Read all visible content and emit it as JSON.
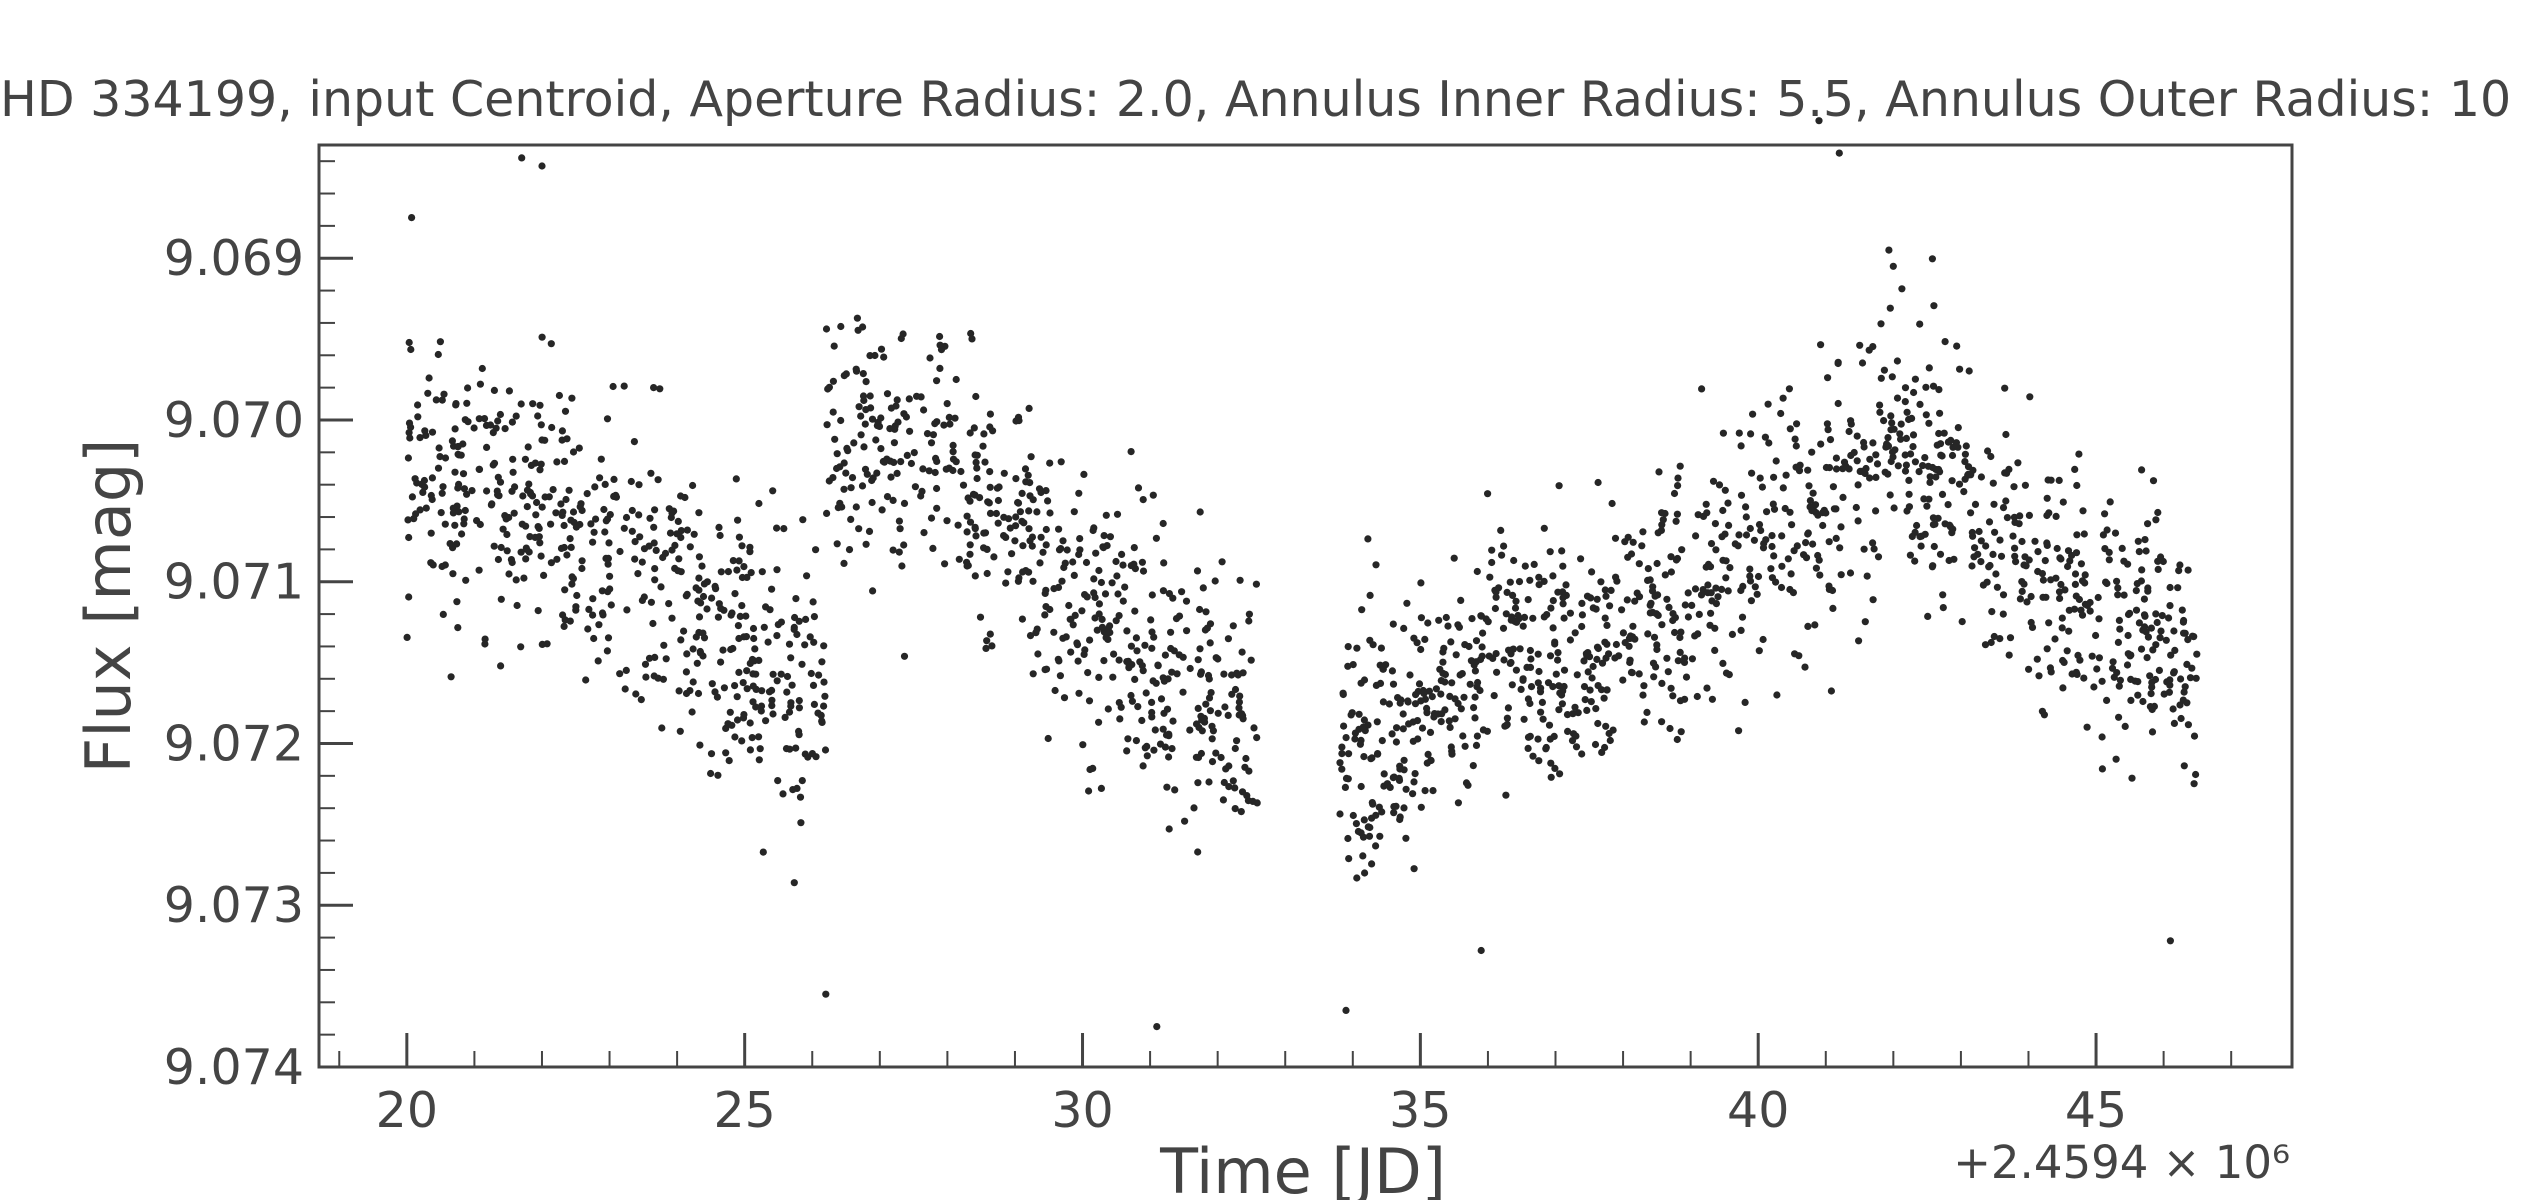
{
  "chart_data": {
    "type": "scatter",
    "title": "HD 334199, input Centroid, Aperture Radius: 2.0, Annulus Inner Radius: 5.5, Annulus Outer Radius: 10",
    "xlabel": "Time [JD]",
    "ylabel": "Flux [mag]",
    "x_offset_label": "+2.4594 × 10⁶",
    "x_offset": 2459400,
    "xlim": [
      18.7,
      47.9
    ],
    "ylim": [
      9.074,
      9.0683
    ],
    "y_inverted": true,
    "x_ticks": [
      {
        "value": 20,
        "label": "20"
      },
      {
        "value": 25,
        "label": "25"
      },
      {
        "value": 30,
        "label": "30"
      },
      {
        "value": 35,
        "label": "35"
      },
      {
        "value": 40,
        "label": "40"
      },
      {
        "value": 45,
        "label": "45"
      }
    ],
    "y_ticks": [
      {
        "value": 9.069,
        "label": "9.069"
      },
      {
        "value": 9.07,
        "label": "9.070"
      },
      {
        "value": 9.071,
        "label": "9.071"
      },
      {
        "value": 9.072,
        "label": "9.072"
      },
      {
        "value": 9.073,
        "label": "9.073"
      },
      {
        "value": 9.074,
        "label": "9.074"
      }
    ],
    "grid": false,
    "marker_color": "#262626",
    "trend_segments": [
      {
        "x": [
          20.0,
          22.0,
          24.0,
          26.2
        ],
        "y": [
          9.0702,
          9.0705,
          9.0711,
          9.0718
        ],
        "scatter": 0.00042,
        "count": 560
      },
      {
        "x": [
          26.2,
          28.0,
          30.0,
          32.6
        ],
        "y": [
          9.0702,
          9.0701,
          9.0712,
          9.0719
        ],
        "scatter": 0.00042,
        "count": 560
      },
      {
        "x": [
          33.8,
          36.0,
          38.0,
          40.0,
          42.0,
          44.0,
          46.5
        ],
        "y": [
          9.0722,
          9.0715,
          9.0713,
          9.0708,
          9.0701,
          9.0709,
          9.0714
        ],
        "scatter": 0.0004,
        "count": 1180
      }
    ],
    "outliers": [
      {
        "x": 21.7,
        "y": 9.06838
      },
      {
        "x": 22.0,
        "y": 9.06843
      },
      {
        "x": 40.9,
        "y": 9.06815
      },
      {
        "x": 41.2,
        "y": 9.06835
      },
      {
        "x": 42.0,
        "y": 9.06905
      },
      {
        "x": 31.1,
        "y": 9.07375
      },
      {
        "x": 26.2,
        "y": 9.07355
      },
      {
        "x": 33.9,
        "y": 9.07365
      },
      {
        "x": 46.1,
        "y": 9.07322
      },
      {
        "x": 35.9,
        "y": 9.07328
      }
    ]
  }
}
